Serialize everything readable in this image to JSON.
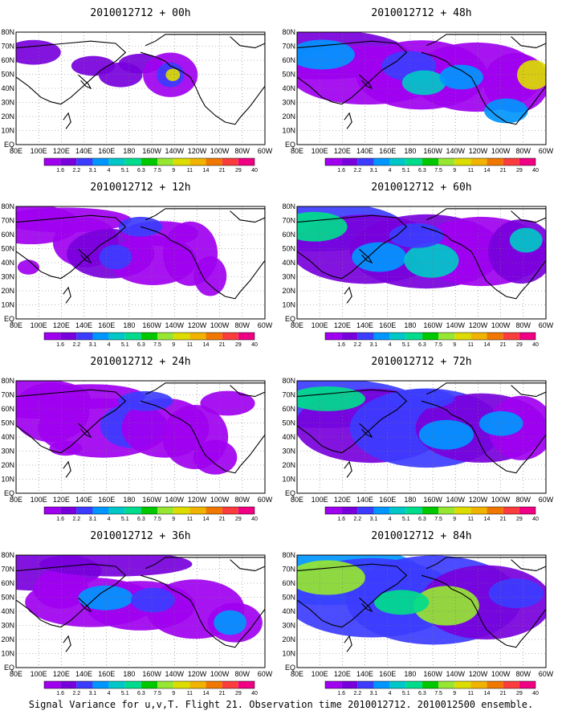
{
  "figure": {
    "caption": "Signal Variance for u,v,T. Flight 21. Observation time 2010012712. 2010012500 ensemble."
  },
  "colors": {
    "background": "#ffffff",
    "land": "#ffffff",
    "coast": "#000000",
    "grid": "#777777"
  },
  "chart_data": {
    "type": "heatmap",
    "grid": true,
    "colorbar": {
      "levels": [
        "1.6",
        "2.2",
        "3.1",
        "4",
        "5.1",
        "6.3",
        "7.5",
        "9",
        "11",
        "14",
        "21",
        "29",
        "40"
      ],
      "colors": [
        "#a000f0",
        "#7800dc",
        "#3c3cff",
        "#0096ff",
        "#00c8c8",
        "#00dc8c",
        "#00c800",
        "#96e632",
        "#dcdc00",
        "#f0b400",
        "#f07800",
        "#fa3c3c",
        "#f00082"
      ]
    },
    "x_tick_labels": [
      "80E",
      "100E",
      "120E",
      "140E",
      "160E",
      "180",
      "160W",
      "140W",
      "120W",
      "100W",
      "80W",
      "60W"
    ],
    "y_tick_labels": [
      "EQ",
      "10N",
      "20N",
      "30N",
      "40N",
      "50N",
      "60N",
      "70N",
      "80N"
    ],
    "xlim": [
      "80E",
      "60W"
    ],
    "ylim": [
      "EQ",
      "80N"
    ],
    "panels": [
      {
        "title": "2010012712 + 00h",
        "lead_hours": 0,
        "max_level": "11"
      },
      {
        "title": "2010012712 + 12h",
        "lead_hours": 12,
        "max_level": "4"
      },
      {
        "title": "2010012712 + 24h",
        "lead_hours": 24,
        "max_level": "5.1"
      },
      {
        "title": "2010012712 + 36h",
        "lead_hours": 36,
        "max_level": "6.3"
      },
      {
        "title": "2010012712 + 48h",
        "lead_hours": 48,
        "max_level": "9"
      },
      {
        "title": "2010012712 + 60h",
        "lead_hours": 60,
        "max_level": "7.5"
      },
      {
        "title": "2010012712 + 72h",
        "lead_hours": 72,
        "max_level": "7.5"
      },
      {
        "title": "2010012712 + 84h",
        "lead_hours": 84,
        "max_level": "9"
      }
    ]
  }
}
